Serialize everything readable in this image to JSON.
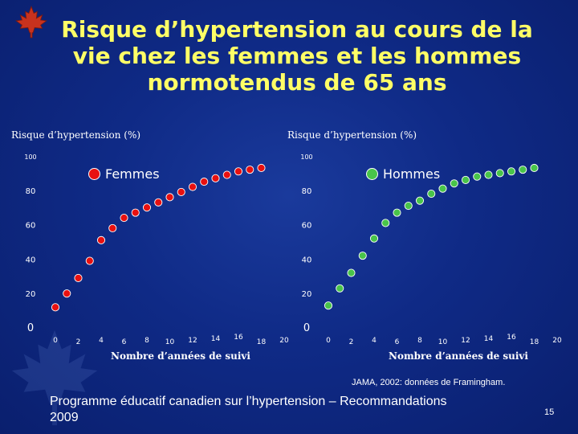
{
  "slide": {
    "title_lines": [
      "Risque d’hypertension au cours de la",
      "vie chez les femmes et les hommes",
      "normotendus de 65 ans"
    ],
    "source": "JAMA, 2002: données de Framingham.",
    "footer_line1": "Programme éducatif canadien sur l’hypertension – Recommandations",
    "footer_line2": "2009",
    "page_number": "15",
    "title_color": "#ffff66",
    "background_color": "#1a3a9c"
  },
  "chart_data": [
    {
      "type": "scatter",
      "ylabel": "Risque d’hypertension (%)",
      "xlabel": "Nombre d’années de suivi",
      "legend": "Femmes",
      "legend_position": "top-right",
      "color": "#e81010",
      "xlim": [
        0,
        20
      ],
      "ylim": [
        0,
        100
      ],
      "xticks": [
        "0",
        "2",
        "4",
        "6",
        "8",
        "10",
        "12",
        "14",
        "16",
        "18",
        "20"
      ],
      "yticks": [
        "0",
        "20",
        "40",
        "60",
        "80",
        "100"
      ],
      "grid": false,
      "x": [
        0,
        1,
        2,
        3,
        4,
        5,
        6,
        7,
        8,
        9,
        10,
        11,
        12,
        13,
        14,
        15,
        16,
        17,
        18
      ],
      "y": [
        12,
        20,
        29,
        39,
        51,
        58,
        64,
        67,
        70,
        73,
        76,
        79,
        82,
        85,
        87,
        89,
        91,
        92,
        93
      ]
    },
    {
      "type": "scatter",
      "ylabel": "Risque d’hypertension (%)",
      "xlabel": "Nombre d’années de suivi",
      "legend": "Hommes",
      "legend_position": "top-right",
      "color": "#49c44a",
      "xlim": [
        0,
        20
      ],
      "ylim": [
        0,
        100
      ],
      "xticks": [
        "0",
        "2",
        "4",
        "6",
        "8",
        "10",
        "12",
        "14",
        "16",
        "18",
        "20"
      ],
      "yticks": [
        "0",
        "20",
        "40",
        "60",
        "80",
        "100"
      ],
      "grid": false,
      "x": [
        0,
        1,
        2,
        3,
        4,
        5,
        6,
        7,
        8,
        9,
        10,
        11,
        12,
        13,
        14,
        15,
        16,
        17,
        18
      ],
      "y": [
        13,
        23,
        32,
        42,
        52,
        61,
        67,
        71,
        74,
        78,
        81,
        84,
        86,
        88,
        89,
        90,
        91,
        92,
        93
      ]
    }
  ]
}
